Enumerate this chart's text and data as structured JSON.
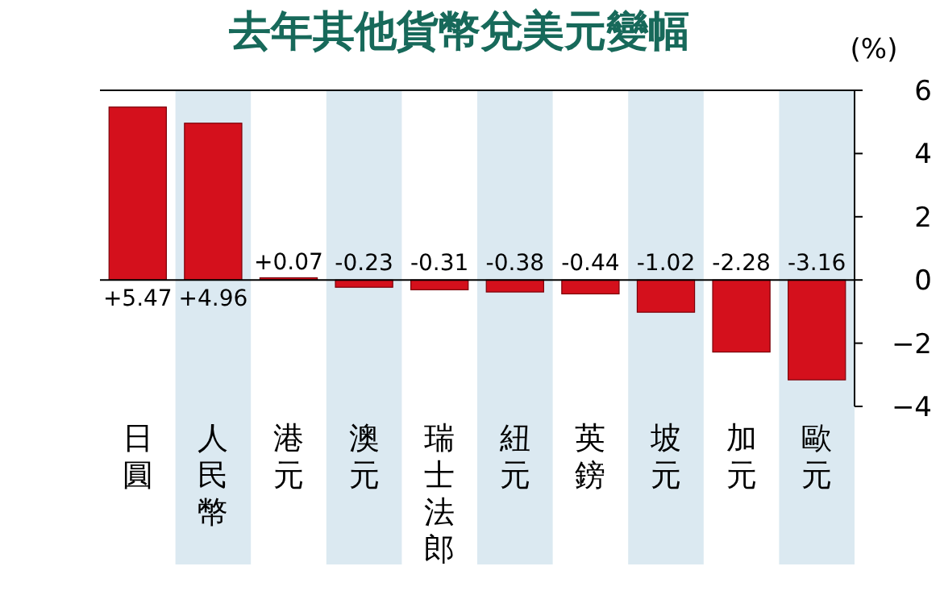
{
  "chart_data": {
    "type": "bar",
    "title": "去年其他貨幣兌美元變幅",
    "ylabel": "(%)",
    "categories": [
      "日圓",
      "人民幣",
      "港元",
      "澳元",
      "瑞士法郎",
      "紐元",
      "英鎊",
      "坡元",
      "加元",
      "歐元"
    ],
    "values": [
      5.47,
      4.96,
      0.07,
      -0.23,
      -0.31,
      -0.38,
      -0.44,
      -1.02,
      -2.28,
      -3.16
    ],
    "value_labels": [
      "+5.47",
      "+4.96",
      "+0.07",
      "-0.23",
      "-0.31",
      "-0.38",
      "-0.44",
      "-1.02",
      "-2.28",
      "-3.16"
    ],
    "color": "#d4101c",
    "ylim": [
      -4,
      6
    ],
    "yticks": [
      -4,
      -2,
      0,
      2,
      4,
      6
    ]
  }
}
